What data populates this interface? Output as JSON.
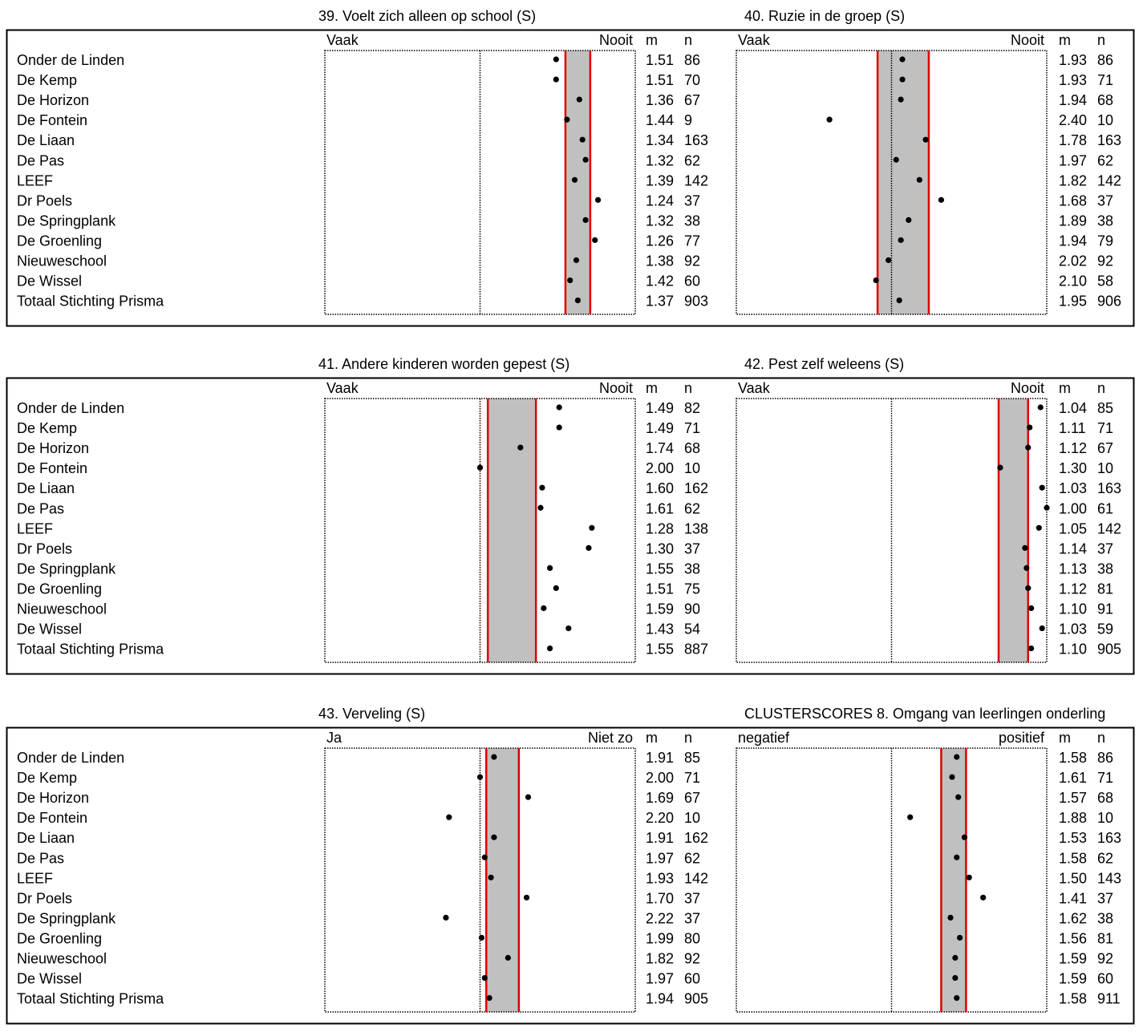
{
  "schools": [
    "Onder de Linden",
    "De Kemp",
    "De Horizon",
    "De Fontein",
    "De Liaan",
    "De Pas",
    "LEEF",
    "Dr Poels",
    "De Springplank",
    "De Groenling",
    "Nieuweschool",
    "De Wissel",
    "Totaal Stichting Prisma"
  ],
  "chart_data": [
    {
      "type": "scatter",
      "title": "39. Voelt zich alleen op school (S)",
      "left_label": "Vaak",
      "right_label": "Nooit",
      "m_header": "m",
      "n_header": "n",
      "band": [
        1.29,
        1.45
      ],
      "m": [
        1.51,
        1.51,
        1.36,
        1.44,
        1.34,
        1.32,
        1.39,
        1.24,
        1.32,
        1.26,
        1.38,
        1.42,
        1.37
      ],
      "n": [
        86,
        70,
        67,
        9,
        163,
        62,
        142,
        37,
        38,
        77,
        92,
        60,
        903
      ],
      "m_text": [
        "1.51",
        "1.51",
        "1.36",
        "1.44",
        "1.34",
        "1.32",
        "1.39",
        "1.24",
        "1.32",
        "1.26",
        "1.38",
        "1.42",
        "1.37"
      ]
    },
    {
      "type": "scatter",
      "title": "40. Ruzie in de groep (S)",
      "left_label": "Vaak",
      "right_label": "Nooit",
      "m_header": "m",
      "n_header": "n",
      "band": [
        1.76,
        2.09
      ],
      "m": [
        1.93,
        1.93,
        1.94,
        2.4,
        1.78,
        1.97,
        1.82,
        1.68,
        1.89,
        1.94,
        2.02,
        2.1,
        1.95
      ],
      "n": [
        86,
        71,
        68,
        10,
        163,
        62,
        142,
        37,
        38,
        79,
        92,
        58,
        906
      ],
      "m_text": [
        "1.93",
        "1.93",
        "1.94",
        "2.40",
        "1.78",
        "1.97",
        "1.82",
        "1.68",
        "1.89",
        "1.94",
        "2.02",
        "2.10",
        "1.95"
      ]
    },
    {
      "type": "scatter",
      "title": "41. Andere kinderen worden gepest (S)",
      "left_label": "Vaak",
      "right_label": "Nooit",
      "m_header": "m",
      "n_header": "n",
      "band": [
        1.64,
        1.95
      ],
      "m": [
        1.49,
        1.49,
        1.74,
        2.0,
        1.6,
        1.61,
        1.28,
        1.3,
        1.55,
        1.51,
        1.59,
        1.43,
        1.55
      ],
      "n": [
        82,
        71,
        68,
        10,
        162,
        62,
        138,
        37,
        38,
        75,
        90,
        54,
        887
      ],
      "m_text": [
        "1.49",
        "1.49",
        "1.74",
        "2.00",
        "1.60",
        "1.61",
        "1.28",
        "1.30",
        "1.55",
        "1.51",
        "1.59",
        "1.43",
        "1.55"
      ]
    },
    {
      "type": "scatter",
      "title": "42. Pest zelf weleens (S)",
      "left_label": "Vaak",
      "right_label": "Nooit",
      "m_header": "m",
      "n_header": "n",
      "band": [
        1.12,
        1.31
      ],
      "m": [
        1.04,
        1.11,
        1.12,
        1.3,
        1.03,
        1.0,
        1.05,
        1.14,
        1.13,
        1.12,
        1.1,
        1.03,
        1.1
      ],
      "n": [
        85,
        71,
        67,
        10,
        163,
        61,
        142,
        37,
        38,
        81,
        91,
        59,
        905
      ],
      "m_text": [
        "1.04",
        "1.11",
        "1.12",
        "1.30",
        "1.03",
        "1.00",
        "1.05",
        "1.14",
        "1.13",
        "1.12",
        "1.10",
        "1.03",
        "1.10"
      ]
    },
    {
      "type": "scatter",
      "title": "43. Verveling (S)",
      "left_label": "Ja",
      "right_label": "Niet zo",
      "m_header": "m",
      "n_header": "n",
      "band": [
        1.75,
        1.96
      ],
      "m": [
        1.91,
        2.0,
        1.69,
        2.2,
        1.91,
        1.97,
        1.93,
        1.7,
        2.22,
        1.99,
        1.82,
        1.97,
        1.94
      ],
      "n": [
        85,
        71,
        67,
        10,
        162,
        62,
        142,
        37,
        37,
        80,
        92,
        60,
        905
      ],
      "m_text": [
        "1.91",
        "2.00",
        "1.69",
        "2.20",
        "1.91",
        "1.97",
        "1.93",
        "1.70",
        "2.22",
        "1.99",
        "1.82",
        "1.97",
        "1.94"
      ]
    },
    {
      "type": "scatter",
      "title": "CLUSTERSCORES 8. Omgang van leerlingen onderling",
      "left_label": "negatief",
      "right_label": "positief",
      "m_header": "m",
      "n_header": "n",
      "band": [
        1.52,
        1.68
      ],
      "m": [
        1.58,
        1.61,
        1.57,
        1.88,
        1.53,
        1.58,
        1.5,
        1.41,
        1.62,
        1.56,
        1.59,
        1.59,
        1.58
      ],
      "n": [
        86,
        71,
        68,
        10,
        163,
        62,
        143,
        37,
        38,
        81,
        92,
        60,
        911
      ],
      "m_text": [
        "1.58",
        "1.61",
        "1.57",
        "1.88",
        "1.53",
        "1.58",
        "1.50",
        "1.41",
        "1.62",
        "1.56",
        "1.59",
        "1.59",
        "1.58"
      ]
    }
  ]
}
